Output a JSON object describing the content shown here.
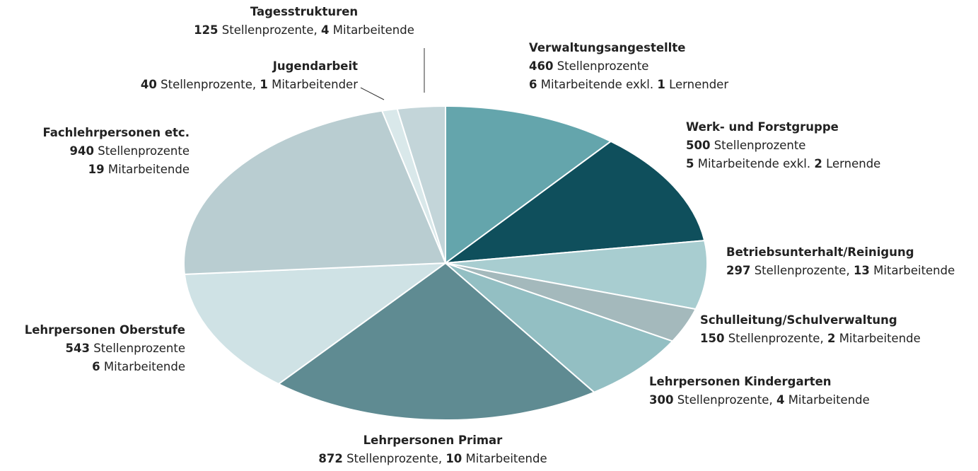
{
  "chart_data": {
    "type": "pie",
    "categories": [
      "Verwaltungsangestellte",
      "Werk- und Forstgruppe",
      "Betriebsunterhalt/Reinigung",
      "Schulleitung/Schulverwaltung",
      "Lehrpersonen Kindergarten",
      "Lehrpersonen Primar",
      "Lehrpersonen Oberstufe",
      "Fachlehrpersonen etc.",
      "Jugendarbeit",
      "Tagesstrukturen"
    ],
    "values": [
      460,
      500,
      297,
      150,
      300,
      872,
      543,
      940,
      40,
      125
    ],
    "colors": [
      "#64a5ac",
      "#0f4f5c",
      "#a8cdd0",
      "#a4b9bc",
      "#93bfc3",
      "#5f8b92",
      "#cfe2e5",
      "#b9cdd1",
      "#d9e8ea",
      "#c3d5d9"
    ],
    "details": [
      [
        [
          "Stellenprozente"
        ],
        [
          6,
          "Mitarbeitende exkl.",
          1,
          "Lernender"
        ]
      ],
      [
        [
          "Stellenprozente"
        ],
        [
          5,
          "Mitarbeitende exkl.",
          2,
          "Lernende"
        ]
      ],
      [
        [
          "Stellenprozente,",
          13,
          "Mitarbeitende"
        ]
      ],
      [
        [
          "Stellenprozente,",
          2,
          "Mitarbeitende"
        ]
      ],
      [
        [
          "Stellenprozente,",
          4,
          "Mitarbeitende"
        ]
      ],
      [
        [
          "Stellenprozente,",
          10,
          "Mitarbeitende"
        ]
      ],
      [
        [
          "Stellenprozente"
        ],
        [
          6,
          "Mitarbeitende"
        ]
      ],
      [
        [
          "Stellenprozente"
        ],
        [
          19,
          "Mitarbeitende"
        ]
      ],
      [
        [
          "Stellenprozente,",
          1,
          "Mitarbeitender"
        ]
      ],
      [
        [
          "Stellenprozente,",
          4,
          "Mitarbeitende"
        ]
      ]
    ]
  }
}
